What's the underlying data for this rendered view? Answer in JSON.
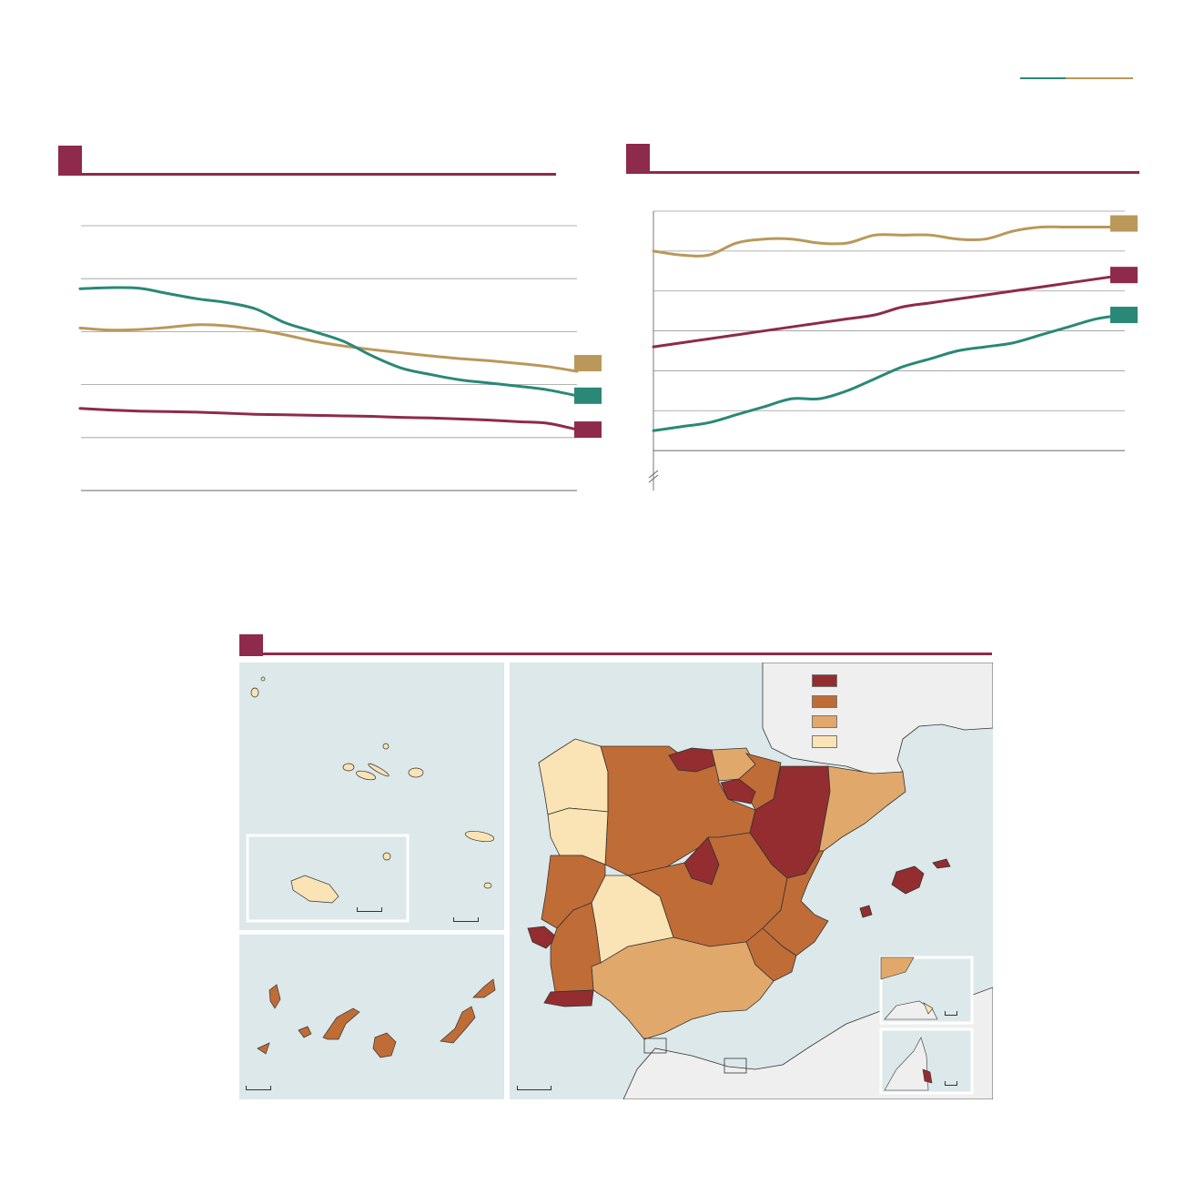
{
  "colors": {
    "accent": "#8e2a4c",
    "gold": "#b9985a",
    "teal": "#2a8877",
    "map_water": "#dce8ea",
    "map_land_other": "#efefef",
    "class_1": "#932d30",
    "class_2": "#c06c37",
    "class_3": "#e1a86b",
    "class_4": "#fae3b4"
  },
  "header": {
    "rule_colors": [
      "#2a8877",
      "#b9985a"
    ]
  },
  "chart_data": [
    {
      "type": "line",
      "title": "",
      "xlabel": "",
      "ylabel": "",
      "x": [
        0,
        1,
        2,
        3,
        4,
        5,
        6,
        7,
        8,
        9,
        10,
        11,
        12,
        13,
        14,
        15,
        16,
        17
      ],
      "ylim": [
        0,
        50
      ],
      "gridlines": [
        0,
        10,
        20,
        30,
        40,
        50
      ],
      "series": [
        {
          "color": "gold",
          "values": [
            30.7,
            30.3,
            30.4,
            30.8,
            31.3,
            31.1,
            30.4,
            29.4,
            28.2,
            27.3,
            26.6,
            26.0,
            25.4,
            24.9,
            24.5,
            24.0,
            23.4,
            22.5
          ]
        },
        {
          "color": "teal",
          "values": [
            38.1,
            38.3,
            38.2,
            37.2,
            36.2,
            35.5,
            34.3,
            31.7,
            30.0,
            28.2,
            25.4,
            23.1,
            21.9,
            20.9,
            20.3,
            19.7,
            19.0,
            17.9
          ]
        },
        {
          "color": "accent",
          "values": [
            15.5,
            15.2,
            15.0,
            14.9,
            14.8,
            14.6,
            14.4,
            14.3,
            14.2,
            14.1,
            14.0,
            13.8,
            13.7,
            13.5,
            13.3,
            13.0,
            12.7,
            11.5
          ]
        }
      ]
    },
    {
      "type": "line",
      "title": "",
      "xlabel": "",
      "ylabel": "",
      "x": [
        0,
        1,
        2,
        3,
        4,
        5,
        6,
        7,
        8,
        9,
        10,
        11,
        12,
        13,
        14,
        15,
        16,
        17
      ],
      "ylim": [
        0,
        7
      ],
      "axis_break": true,
      "gridlines": [
        1,
        2,
        3,
        4,
        5,
        6,
        7
      ],
      "series": [
        {
          "color": "gold",
          "values": [
            6.0,
            5.9,
            5.9,
            6.2,
            6.3,
            6.3,
            6.2,
            6.2,
            6.4,
            6.4,
            6.4,
            6.3,
            6.3,
            6.5,
            6.6,
            6.6,
            6.6,
            6.6
          ]
        },
        {
          "color": "accent",
          "values": [
            3.6,
            3.7,
            3.8,
            3.9,
            4.0,
            4.1,
            4.2,
            4.3,
            4.4,
            4.6,
            4.7,
            4.8,
            4.9,
            5.0,
            5.1,
            5.2,
            5.3,
            5.4
          ]
        },
        {
          "color": "teal",
          "values": [
            1.5,
            1.6,
            1.7,
            1.9,
            2.1,
            2.3,
            2.3,
            2.5,
            2.8,
            3.1,
            3.3,
            3.5,
            3.6,
            3.7,
            3.9,
            4.1,
            4.3,
            4.4
          ]
        }
      ]
    }
  ],
  "map": {
    "legend": [
      "class_1",
      "class_2",
      "class_3",
      "class_4"
    ]
  }
}
